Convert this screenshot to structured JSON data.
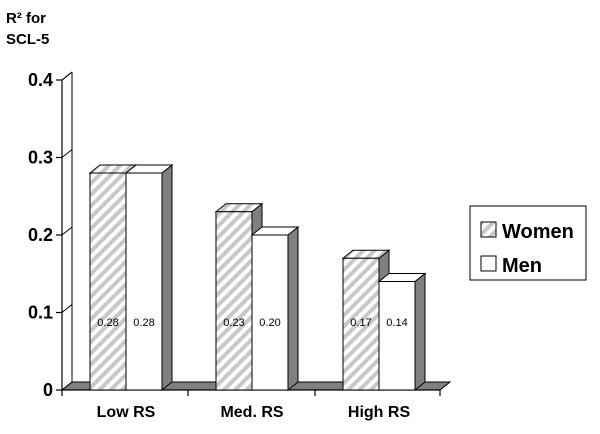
{
  "chart_data": {
    "type": "bar",
    "title": "",
    "ylabel_lines": [
      "R² for",
      "SCL-5"
    ],
    "xlabel": "",
    "categories": [
      "Low RS",
      "Med. RS",
      "High RS"
    ],
    "series": [
      {
        "name": "Women",
        "values": [
          0.28,
          0.23,
          0.17
        ],
        "labels": [
          "0.28",
          "0.23",
          "0.17"
        ],
        "pattern": "diagonal-hatch",
        "color": "#c8c8c8"
      },
      {
        "name": "Men",
        "values": [
          0.28,
          0.2,
          0.14
        ],
        "labels": [
          "0.28",
          "0.20",
          "0.14"
        ],
        "pattern": "solid",
        "color": "#ffffff"
      }
    ],
    "ylim": [
      0,
      0.4
    ],
    "yticks": [
      "0",
      "0.1",
      "0.2",
      "0.3",
      "0.4"
    ],
    "grid": false,
    "legend": "right",
    "side_color": "#808080",
    "floor_color": "#808080"
  }
}
